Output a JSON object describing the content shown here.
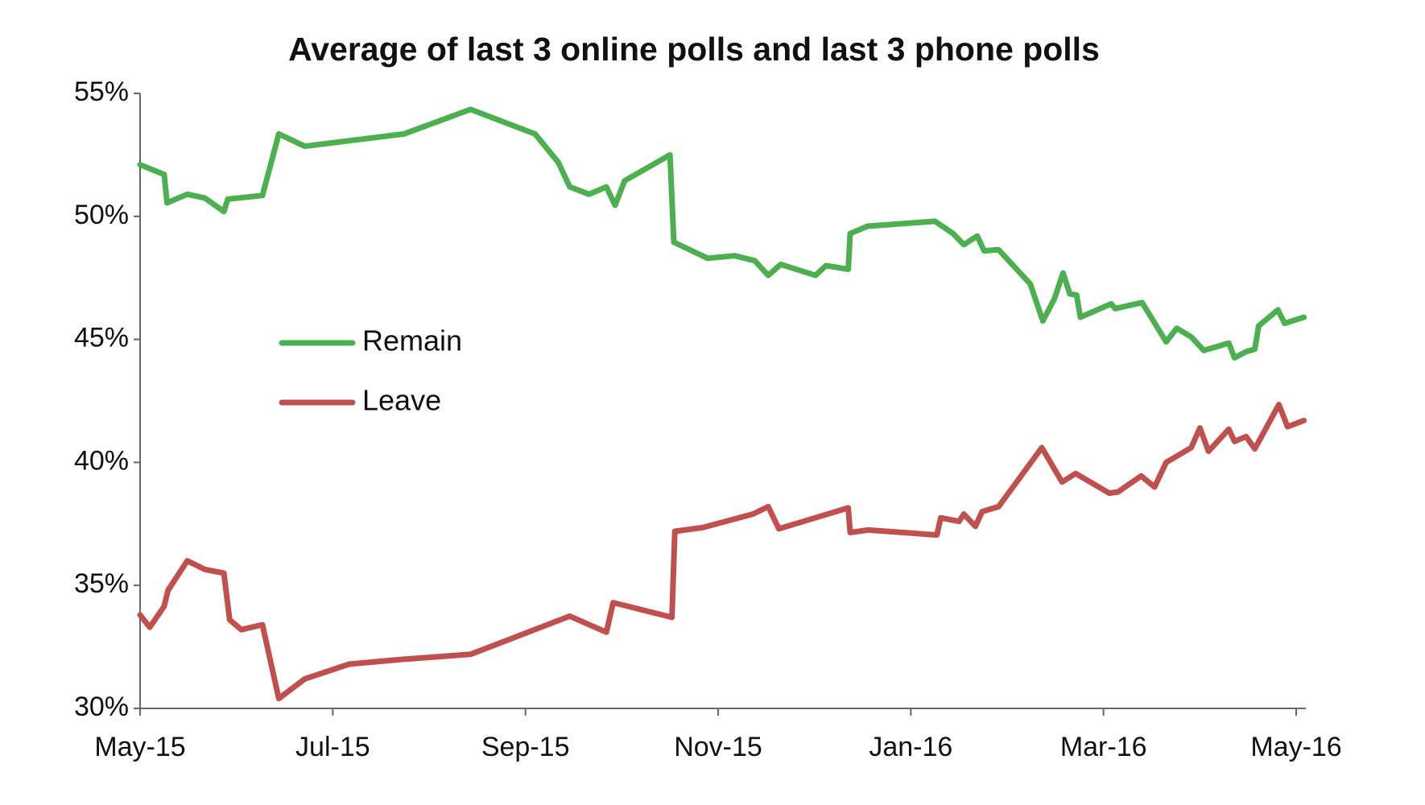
{
  "chart_data": {
    "type": "line",
    "title": "Average of last 3 online polls and last 3 phone polls",
    "xlim": [
      0,
      12.1
    ],
    "xticks": [
      {
        "value": 0,
        "label": "May-15"
      },
      {
        "value": 2,
        "label": "Jul-15"
      },
      {
        "value": 4,
        "label": "Sep-15"
      },
      {
        "value": 6,
        "label": "Nov-15"
      },
      {
        "value": 8,
        "label": "Jan-16"
      },
      {
        "value": 10,
        "label": "Mar-16"
      },
      {
        "value": 12,
        "label": "May-16"
      }
    ],
    "ylim": [
      30,
      55
    ],
    "yticks": [
      {
        "value": 30,
        "label": "30%"
      },
      {
        "value": 35,
        "label": "35%"
      },
      {
        "value": 40,
        "label": "40%"
      },
      {
        "value": 45,
        "label": "45%"
      },
      {
        "value": 50,
        "label": "50%"
      },
      {
        "value": 55,
        "label": "55%"
      }
    ],
    "legend": "left",
    "series": [
      {
        "name": "Remain",
        "color": "#4caf50",
        "x": [
          0,
          0.25,
          0.28,
          0.49,
          0.67,
          0.87,
          0.91,
          1.27,
          1.44,
          1.71,
          2.74,
          3.43,
          4.1,
          4.34,
          4.46,
          4.66,
          4.84,
          4.93,
          5.03,
          5.5,
          5.54,
          5.89,
          6.17,
          6.38,
          6.52,
          6.65,
          7.01,
          7.12,
          7.35,
          7.37,
          7.55,
          8.25,
          8.44,
          8.55,
          8.69,
          8.76,
          8.91,
          9.24,
          9.37,
          9.49,
          9.58,
          9.65,
          9.72,
          9.76,
          10.08,
          10.12,
          10.4,
          10.65,
          10.76,
          10.91,
          11.04,
          11.3,
          11.36,
          11.48,
          11.57,
          11.61,
          11.81,
          11.88,
          12.08
        ],
        "values": [
          52.1,
          51.7,
          50.55,
          50.9,
          50.75,
          50.2,
          50.7,
          50.85,
          53.35,
          52.85,
          53.35,
          54.35,
          53.35,
          52.2,
          51.2,
          50.9,
          51.2,
          50.45,
          51.45,
          52.5,
          48.95,
          48.3,
          48.4,
          48.2,
          47.6,
          48.05,
          47.6,
          48.0,
          47.85,
          49.3,
          49.6,
          49.8,
          49.3,
          48.85,
          49.2,
          48.6,
          48.65,
          47.25,
          45.75,
          46.65,
          47.7,
          46.85,
          46.8,
          45.9,
          46.45,
          46.25,
          46.5,
          44.9,
          45.45,
          45.1,
          44.55,
          44.85,
          44.25,
          44.5,
          44.6,
          45.55,
          46.2,
          45.65,
          45.9
        ]
      },
      {
        "name": "Leave",
        "color": "#c0504d",
        "x": [
          0,
          0.1,
          0.25,
          0.29,
          0.49,
          0.67,
          0.87,
          0.93,
          1.05,
          1.27,
          1.44,
          1.71,
          2.17,
          2.74,
          3.43,
          4.46,
          4.84,
          4.91,
          5.52,
          5.55,
          5.84,
          6.36,
          6.52,
          6.63,
          7.01,
          7.35,
          7.37,
          7.56,
          8.27,
          8.31,
          8.5,
          8.55,
          8.67,
          8.74,
          8.91,
          9.36,
          9.57,
          9.71,
          10.06,
          10.15,
          10.39,
          10.53,
          10.65,
          10.91,
          11.0,
          11.09,
          11.3,
          11.36,
          11.48,
          11.57,
          11.82,
          11.91,
          12.08
        ],
        "values": [
          33.8,
          33.3,
          34.15,
          34.8,
          36.0,
          35.65,
          35.5,
          33.6,
          33.2,
          33.4,
          30.4,
          31.2,
          31.8,
          32.0,
          32.2,
          33.75,
          33.1,
          34.3,
          33.7,
          37.2,
          37.35,
          37.9,
          38.2,
          37.3,
          37.75,
          38.15,
          37.15,
          37.25,
          37.05,
          37.75,
          37.6,
          37.9,
          37.4,
          38.0,
          38.2,
          40.6,
          39.2,
          39.55,
          38.75,
          38.8,
          39.45,
          39.0,
          40.0,
          40.6,
          41.4,
          40.45,
          41.35,
          40.85,
          41.05,
          40.55,
          42.35,
          41.45,
          41.7
        ]
      }
    ]
  }
}
